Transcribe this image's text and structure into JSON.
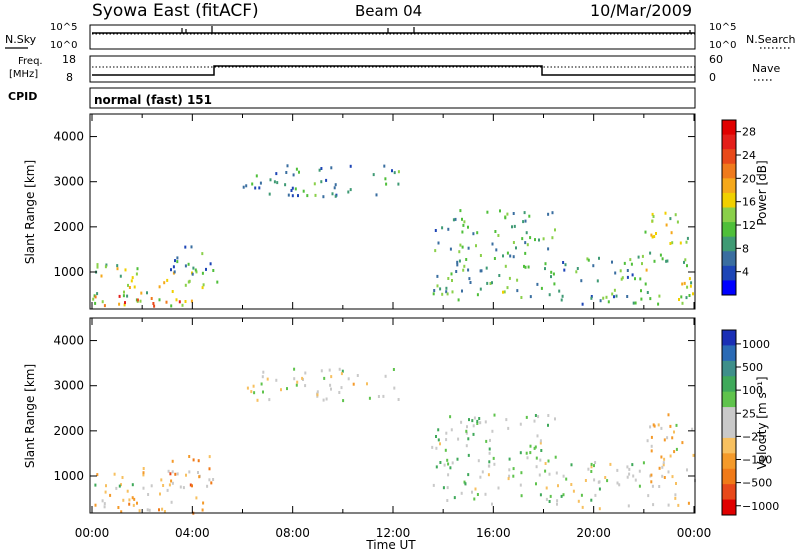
{
  "header": {
    "station": "Syowa East (fitACF)",
    "beam": "Beam 04",
    "date": "10/Mar/2009"
  },
  "noise_panel": {
    "left_label": "N.Sky",
    "right_label": "N.Search",
    "tick_top": "10^5",
    "tick_bottom": "10^0"
  },
  "freq_panel": {
    "left_label_line1": "Freq.",
    "left_label_line2": "[MHz]",
    "left_tick_top": "18",
    "left_tick_bottom": "8",
    "right_label": "Nave",
    "right_tick_top": "60",
    "right_tick_bottom": "0"
  },
  "cpid": {
    "label": "CPID",
    "value": "normal (fast) 151"
  },
  "x_axis": {
    "label": "Time UT",
    "ticks": [
      "00:00",
      "04:00",
      "08:00",
      "12:00",
      "16:00",
      "20:00",
      "00:00"
    ]
  },
  "colors": {
    "power": [
      "#0000ff",
      "#1d45b6",
      "#3a6ea0",
      "#3f9a74",
      "#4fbf3a",
      "#8ad04a",
      "#f0d000",
      "#f5a81b",
      "#ef7a1c",
      "#e8491a",
      "#e41f1a",
      "#e00000"
    ],
    "velocity": [
      "#1a2fb5",
      "#2a6ab5",
      "#3e8f8a",
      "#3fa95a",
      "#5fc34c",
      "#c9c9c9",
      "#c9c9c9",
      "#f7c060",
      "#f49a2a",
      "#f07a18",
      "#e8491a",
      "#e00000"
    ]
  },
  "chart_data": [
    {
      "type": "heatmap",
      "name": "power",
      "ylabel": "Slant Range [km]",
      "xlabel": "",
      "ylim": [
        180,
        4500
      ],
      "yticks": [
        "1000",
        "2000",
        "3000",
        "4000"
      ],
      "colorbar": {
        "label": "Power [dB]",
        "range": [
          0,
          30
        ],
        "ticks": [
          "4",
          "8",
          "12",
          "16",
          "20",
          "24",
          "28"
        ]
      },
      "regions": [
        {
          "t0": 0.0,
          "t1": 4.5,
          "r0": 200,
          "r1": 1200,
          "value": 14
        },
        {
          "t0": 0.0,
          "t1": 4.0,
          "r0": 250,
          "r1": 500,
          "value": 22
        },
        {
          "t0": 3.0,
          "t1": 5.0,
          "r0": 800,
          "r1": 1600,
          "value": 8
        },
        {
          "t0": 6.0,
          "t1": 12.5,
          "r0": 2700,
          "r1": 3400,
          "value": 8
        },
        {
          "t0": 13.5,
          "t1": 18.5,
          "r0": 400,
          "r1": 2400,
          "value": 10
        },
        {
          "t0": 18.0,
          "t1": 22.0,
          "r0": 300,
          "r1": 1400,
          "value": 9
        },
        {
          "t0": 22.0,
          "t1": 24.0,
          "r0": 300,
          "r1": 2400,
          "value": 14
        }
      ]
    },
    {
      "type": "heatmap",
      "name": "velocity",
      "ylabel": "Slant Range [km]",
      "xlabel": "Time UT",
      "ylim": [
        180,
        4500
      ],
      "yticks": [
        "1000",
        "2000",
        "3000",
        "4000"
      ],
      "colorbar": {
        "label": "Velocity [m s⁻¹]",
        "range": [
          -1000,
          1000
        ],
        "ticks": [
          "1000",
          "500",
          "100",
          "25",
          "−25",
          "−100",
          "−500",
          "−1000"
        ]
      },
      "regions": [
        {
          "t0": 0.0,
          "t1": 4.5,
          "r0": 200,
          "r1": 1200,
          "value": -200
        },
        {
          "t0": 0.0,
          "t1": 3.0,
          "r0": 700,
          "r1": 900,
          "value": 150
        },
        {
          "t0": 3.0,
          "t1": 5.0,
          "r0": 800,
          "r1": 1500,
          "value": -400
        },
        {
          "t0": 6.0,
          "t1": 12.5,
          "r0": 2700,
          "r1": 3400,
          "value": 0
        },
        {
          "t0": 13.5,
          "t1": 18.5,
          "r0": 400,
          "r1": 2400,
          "value": 150
        },
        {
          "t0": 18.0,
          "t1": 22.0,
          "r0": 300,
          "r1": 1400,
          "value": 50
        },
        {
          "t0": 22.0,
          "t1": 24.0,
          "r0": 300,
          "r1": 2400,
          "value": -150
        }
      ]
    }
  ]
}
